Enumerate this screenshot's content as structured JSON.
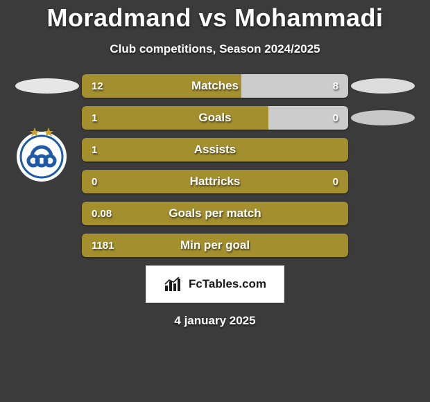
{
  "header": {
    "title": "Moradmand vs Mohammadi",
    "subtitle": "Club competitions, Season 2024/2025"
  },
  "colors": {
    "left_bar": "#a38f2e",
    "right_bar": "#cccccc",
    "track_bg": "#2f2f2f",
    "page_bg": "#3b3b3b",
    "text": "#ffffff",
    "ellipse_left": "#e6e6e6",
    "ellipse_right_top": "#dcdcdc",
    "ellipse_right_mid": "#c8c8c8",
    "badge_bg": "#ffffff",
    "badge_border": "#d9d9d9",
    "badge_text": "#1a1a1a",
    "club_ring": "#ffffff",
    "club_blue": "#1e5aa8",
    "club_gold": "#c9a227"
  },
  "layout": {
    "track_width": 384,
    "track_height": 34,
    "track_radius": 6,
    "title_fontsize": 36,
    "subtitle_fontsize": 17,
    "label_fontsize": 17,
    "value_fontsize": 15,
    "row_gap": 12
  },
  "stats": [
    {
      "label": "Matches",
      "left_display": "12",
      "right_display": "8",
      "left_pct": 60,
      "right_pct": 40,
      "show_left_ellipse": true,
      "show_right_ellipse": true
    },
    {
      "label": "Goals",
      "left_display": "1",
      "right_display": "0",
      "left_pct": 70,
      "right_pct": 30,
      "show_left_ellipse": false,
      "show_right_ellipse": true
    },
    {
      "label": "Assists",
      "left_display": "1",
      "right_display": "",
      "left_pct": 100,
      "right_pct": 0,
      "show_left_ellipse": false,
      "show_right_ellipse": false
    },
    {
      "label": "Hattricks",
      "left_display": "0",
      "right_display": "0",
      "left_pct": 100,
      "right_pct": 0,
      "show_left_ellipse": false,
      "show_right_ellipse": false
    },
    {
      "label": "Goals per match",
      "left_display": "0.08",
      "right_display": "",
      "left_pct": 100,
      "right_pct": 0,
      "show_left_ellipse": false,
      "show_right_ellipse": false
    },
    {
      "label": "Min per goal",
      "left_display": "1181",
      "right_display": "",
      "left_pct": 100,
      "right_pct": 0,
      "show_left_ellipse": false,
      "show_right_ellipse": false
    }
  ],
  "footer": {
    "brand": "FcTables.com",
    "date": "4 january 2025"
  }
}
